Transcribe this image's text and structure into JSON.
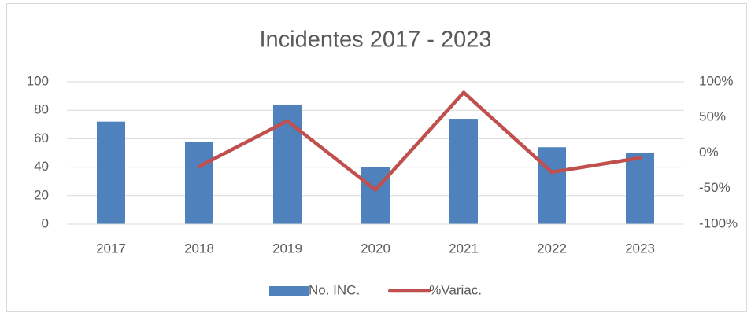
{
  "chart_data": {
    "type": "bar",
    "title": "Incidentes 2017 - 2023",
    "categories": [
      "2017",
      "2018",
      "2019",
      "2020",
      "2021",
      "2022",
      "2023"
    ],
    "series": [
      {
        "name": "No. INC.",
        "color": "#4f81bd",
        "type": "bar",
        "values": [
          72,
          58,
          84,
          40,
          74,
          54,
          50
        ]
      },
      {
        "name": "%Variac.",
        "color": "#c0504d",
        "type": "line",
        "axis": "y2",
        "values": [
          null,
          -19,
          45,
          -52,
          85,
          -27,
          -7
        ]
      }
    ],
    "ylim": [
      0,
      100
    ],
    "yticks": [
      0,
      20,
      40,
      60,
      80,
      100
    ],
    "y2lim": [
      -100,
      100
    ],
    "y2ticks": [
      {
        "value": -100,
        "label": "-100%"
      },
      {
        "value": -50,
        "label": "-50%"
      },
      {
        "value": 0,
        "label": "0%"
      },
      {
        "value": 50,
        "label": "50%"
      },
      {
        "value": 100,
        "label": "100%"
      }
    ],
    "grid": true,
    "legend": "bottom"
  }
}
